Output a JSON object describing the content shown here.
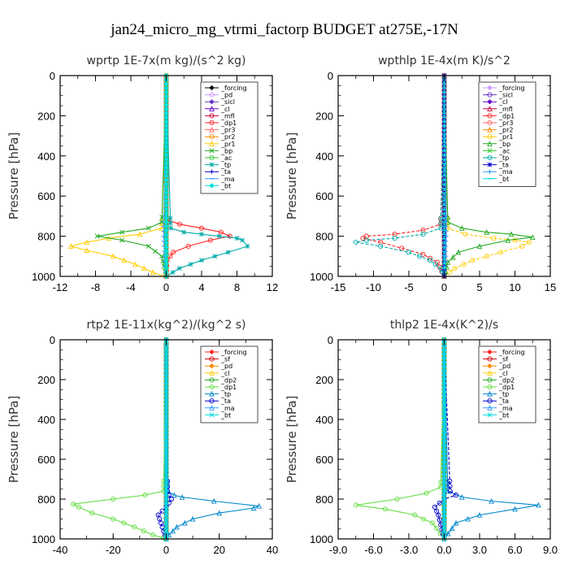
{
  "figure_title": "jan24_micro_mg_vtrmi_factorp  BUDGET at275E,-17N",
  "chart_data": [
    {
      "type": "line",
      "title": "wprtp  1E-7x(m kg)/(s^2 kg)",
      "ylabel": "Pressure [hPa]",
      "xlim": [
        -12,
        12
      ],
      "ylim": [
        1000,
        0
      ],
      "xticks": [
        -12,
        -8,
        -4,
        0,
        4,
        8,
        12
      ],
      "xtick_labels": [
        "-12",
        "-8",
        "-4",
        "0",
        "4",
        "8",
        "12"
      ],
      "yticks": [
        0,
        200,
        400,
        600,
        800,
        1000
      ],
      "ytick_labels": [
        "0",
        "200",
        "400",
        "600",
        "800",
        "1000"
      ],
      "legend": "top-right",
      "series": [
        {
          "name": "_forcing",
          "color": "#000000",
          "x": [
            0,
            0,
            0
          ],
          "y": [
            0,
            500,
            1000
          ]
        },
        {
          "name": "_pd",
          "color": "#cc99ff",
          "x": [
            0,
            0,
            0
          ],
          "y": [
            0,
            500,
            1000
          ]
        },
        {
          "name": "_sicl",
          "color": "#6633cc",
          "x": [
            0,
            0,
            0
          ],
          "y": [
            0,
            500,
            1000
          ]
        },
        {
          "name": "_cl",
          "color": "#6600cc",
          "x": [
            0,
            0,
            0
          ],
          "y": [
            0,
            500,
            1000
          ]
        },
        {
          "name": "_mfl",
          "color": "#cc0033",
          "x": [
            0,
            0,
            0
          ],
          "y": [
            0,
            500,
            1000
          ]
        },
        {
          "name": "_dp1",
          "color": "#ff2222",
          "x": [
            0,
            0.2,
            1.5,
            4,
            6.2,
            7.2,
            5,
            2.5,
            0.8,
            0.1,
            0
          ],
          "y": [
            0,
            720,
            740,
            760,
            780,
            800,
            820,
            850,
            880,
            920,
            1000
          ]
        },
        {
          "name": "_pr3",
          "color": "#ff6666",
          "x": [
            0,
            0,
            0
          ],
          "y": [
            0,
            500,
            1000
          ]
        },
        {
          "name": "_pr2",
          "color": "#ff8800",
          "x": [
            0,
            0,
            0
          ],
          "y": [
            0,
            500,
            1000
          ]
        },
        {
          "name": "_pr1",
          "color": "#ffcc00",
          "x": [
            0,
            -0.5,
            -3,
            -6.5,
            -9,
            -10.8,
            -9,
            -6,
            -3.5,
            -1.5,
            -0.2
          ],
          "y": [
            0,
            760,
            790,
            810,
            830,
            850,
            870,
            900,
            940,
            980,
            1000
          ]
        },
        {
          "name": "_bp",
          "color": "#22aa22",
          "x": [
            0,
            -0.5,
            -2,
            -5,
            -7.8,
            -5,
            -2,
            -0.5,
            0
          ],
          "y": [
            0,
            730,
            760,
            780,
            800,
            820,
            850,
            900,
            1000
          ]
        },
        {
          "name": "_ac",
          "color": "#33cc33",
          "x": [
            0,
            0,
            0
          ],
          "y": [
            0,
            500,
            1000
          ]
        },
        {
          "name": "_tp",
          "color": "#00aaaa",
          "x": [
            0,
            0.5,
            2,
            4,
            6,
            8,
            8.6,
            9.2,
            7,
            4,
            1.5,
            0
          ],
          "y": [
            0,
            760,
            780,
            790,
            800,
            810,
            820,
            850,
            880,
            920,
            960,
            1000
          ]
        },
        {
          "name": "_ta",
          "color": "#0000cc",
          "x": [
            0,
            0,
            0
          ],
          "y": [
            0,
            500,
            1000
          ]
        },
        {
          "name": "_ma",
          "color": "#3399ff",
          "x": [
            0,
            -0.3,
            -0.2,
            0
          ],
          "y": [
            0,
            800,
            900,
            1000
          ]
        },
        {
          "name": "_bt",
          "color": "#00dddd",
          "x": [
            0,
            0,
            0
          ],
          "y": [
            0,
            500,
            1000
          ]
        }
      ]
    },
    {
      "type": "line",
      "title": "wpthlp  1E-4x(m K)/s^2",
      "ylabel": "Pressure [hPa]",
      "xlim": [
        -15,
        15
      ],
      "ylim": [
        1000,
        0
      ],
      "xticks": [
        -15,
        -10,
        -5,
        0,
        5,
        10,
        15
      ],
      "xtick_labels": [
        "-15",
        "-10",
        "-5",
        "0",
        "5",
        "10",
        "15"
      ],
      "yticks": [
        0,
        200,
        400,
        600,
        800,
        1000
      ],
      "ytick_labels": [
        "0",
        "200",
        "400",
        "600",
        "800",
        "1000"
      ],
      "legend": "top-right",
      "series": [
        {
          "name": "_forcing",
          "color": "#cc99ff",
          "x": [
            0,
            0,
            0
          ],
          "y": [
            0,
            500,
            1000
          ]
        },
        {
          "name": "_sicl",
          "color": "#6633cc",
          "x": [
            0,
            0,
            0
          ],
          "y": [
            0,
            500,
            1000
          ]
        },
        {
          "name": "_cl",
          "color": "#6600cc",
          "x": [
            0,
            0,
            0
          ],
          "y": [
            0,
            500,
            1000
          ]
        },
        {
          "name": "_mfl",
          "color": "#cc0033",
          "x": [
            0,
            0,
            0
          ],
          "y": [
            0,
            500,
            1000
          ]
        },
        {
          "name": "_dp1",
          "color": "#ff2222",
          "x": [
            0,
            -0.5,
            -3,
            -7,
            -11,
            -11.5,
            -9,
            -6,
            -3,
            -1,
            0
          ],
          "y": [
            0,
            740,
            770,
            790,
            800,
            810,
            830,
            860,
            890,
            930,
            1000
          ]
        },
        {
          "name": "_pr3",
          "color": "#ff6666",
          "x": [
            0,
            0,
            0
          ],
          "y": [
            0,
            500,
            1000
          ]
        },
        {
          "name": "_pr2",
          "color": "#ff8800",
          "x": [
            0,
            0,
            0
          ],
          "y": [
            0,
            500,
            1000
          ]
        },
        {
          "name": "_pr1",
          "color": "#ffcc00",
          "x": [
            0,
            0.5,
            3,
            7,
            10,
            12,
            11,
            8,
            4,
            1.5,
            0
          ],
          "y": [
            0,
            760,
            790,
            810,
            820,
            830,
            850,
            880,
            920,
            960,
            1000
          ]
        },
        {
          "name": "_bp",
          "color": "#22aa22",
          "x": [
            0,
            0.5,
            2.5,
            6,
            9.5,
            12.5,
            9,
            5,
            2,
            0.5,
            0
          ],
          "y": [
            0,
            730,
            760,
            780,
            790,
            805,
            820,
            850,
            880,
            930,
            1000
          ]
        },
        {
          "name": "_ac",
          "color": "#33cc33",
          "x": [
            0,
            0,
            0
          ],
          "y": [
            0,
            500,
            1000
          ]
        },
        {
          "name": "_tp",
          "color": "#00aaaa",
          "x": [
            0,
            -0.5,
            -3,
            -7,
            -11,
            -12.5,
            -9,
            -5,
            -2,
            -0.5,
            0
          ],
          "y": [
            0,
            760,
            790,
            810,
            820,
            830,
            850,
            880,
            920,
            960,
            1000
          ]
        },
        {
          "name": "_ta",
          "color": "#0000cc",
          "x": [
            0,
            0,
            0
          ],
          "y": [
            0,
            500,
            1000
          ]
        },
        {
          "name": "_ma",
          "color": "#3399ff",
          "x": [
            0,
            0.3,
            0.2,
            0
          ],
          "y": [
            0,
            800,
            900,
            1000
          ]
        },
        {
          "name": "_bt",
          "color": "#00dddd",
          "x": [
            0,
            0,
            0
          ],
          "y": [
            0,
            500,
            1000
          ]
        }
      ]
    },
    {
      "type": "line",
      "title": "rtp2  1E-11x(kg^2)/(kg^2 s)",
      "ylabel": "Pressure [hPa]",
      "xlim": [
        -40,
        40
      ],
      "ylim": [
        1000,
        0
      ],
      "xticks": [
        -40,
        -20,
        0,
        20,
        40
      ],
      "xtick_labels": [
        "-40",
        "-20",
        "0",
        "20",
        "40"
      ],
      "yticks": [
        0,
        200,
        400,
        600,
        800,
        1000
      ],
      "ytick_labels": [
        "0",
        "200",
        "400",
        "600",
        "800",
        "1000"
      ],
      "legend": "top-right",
      "series": [
        {
          "name": "_forcing",
          "color": "#ff2222",
          "x": [
            0,
            0,
            0
          ],
          "y": [
            0,
            500,
            1000
          ]
        },
        {
          "name": "_sf",
          "color": "#cc0000",
          "x": [
            0,
            0,
            0
          ],
          "y": [
            0,
            500,
            1000
          ]
        },
        {
          "name": "_pd",
          "color": "#ff8800",
          "x": [
            0,
            0,
            0
          ],
          "y": [
            0,
            500,
            1000
          ]
        },
        {
          "name": "_cl",
          "color": "#ffcc00",
          "x": [
            0,
            0,
            0
          ],
          "y": [
            0,
            500,
            1000
          ]
        },
        {
          "name": "_dp2",
          "color": "#22aa22",
          "x": [
            0,
            0,
            0
          ],
          "y": [
            0,
            500,
            1000
          ]
        },
        {
          "name": "_dp1",
          "color": "#66dd44",
          "x": [
            0,
            -1,
            -8,
            -20,
            -35,
            -33,
            -28,
            -20,
            -12,
            -5,
            -1,
            0
          ],
          "y": [
            0,
            760,
            780,
            800,
            825,
            840,
            870,
            900,
            940,
            980,
            995,
            1000
          ]
        },
        {
          "name": "_tp",
          "color": "#0088cc",
          "x": [
            0,
            0.5,
            3,
            6,
            18,
            35,
            33,
            20,
            10,
            4,
            1,
            0
          ],
          "y": [
            0,
            760,
            780,
            790,
            810,
            835,
            845,
            870,
            900,
            940,
            980,
            1000
          ]
        },
        {
          "name": "_ta",
          "color": "#0000cc",
          "x": [
            0,
            0.5,
            1,
            2,
            0,
            -3,
            -2,
            -1,
            0
          ],
          "y": [
            0,
            760,
            780,
            800,
            840,
            880,
            920,
            960,
            1000
          ]
        },
        {
          "name": "_ma",
          "color": "#3399ff",
          "x": [
            0,
            0,
            0
          ],
          "y": [
            0,
            500,
            1000
          ]
        },
        {
          "name": "_bt",
          "color": "#00dddd",
          "x": [
            0,
            0,
            0
          ],
          "y": [
            0,
            500,
            1000
          ]
        }
      ]
    },
    {
      "type": "line",
      "title": "thlp2  1E-4x(K^2)/s",
      "ylabel": "Pressure [hPa]",
      "xlim": [
        -9,
        9
      ],
      "ylim": [
        1000,
        0
      ],
      "xticks": [
        -9,
        -6,
        -3,
        0,
        3,
        6,
        9
      ],
      "xtick_labels": [
        "-9.0",
        "-6.0",
        "-3.0",
        "0.0",
        "3.0",
        "6.0",
        "9.0"
      ],
      "yticks": [
        0,
        200,
        400,
        600,
        800,
        1000
      ],
      "ytick_labels": [
        "0",
        "200",
        "400",
        "600",
        "800",
        "1000"
      ],
      "legend": "top-right",
      "series": [
        {
          "name": "_forcing",
          "color": "#ff2222",
          "x": [
            0,
            0,
            0
          ],
          "y": [
            0,
            500,
            1000
          ]
        },
        {
          "name": "_sf",
          "color": "#cc0000",
          "x": [
            0,
            0,
            0
          ],
          "y": [
            0,
            500,
            1000
          ]
        },
        {
          "name": "_pd",
          "color": "#ff8800",
          "x": [
            0,
            0,
            0
          ],
          "y": [
            0,
            500,
            1000
          ]
        },
        {
          "name": "_cl",
          "color": "#ffcc00",
          "x": [
            0,
            0,
            0
          ],
          "y": [
            0,
            500,
            1000
          ]
        },
        {
          "name": "_dp2",
          "color": "#22aa22",
          "x": [
            0,
            0,
            0
          ],
          "y": [
            0,
            500,
            1000
          ]
        },
        {
          "name": "_dp1",
          "color": "#66dd44",
          "x": [
            0,
            -0.3,
            -1.5,
            -4,
            -7.5,
            -5,
            -2.5,
            -1,
            0
          ],
          "y": [
            0,
            740,
            770,
            800,
            830,
            850,
            880,
            920,
            1000
          ]
        },
        {
          "name": "_tp",
          "color": "#0088cc",
          "x": [
            0,
            0.3,
            1.5,
            4,
            8,
            6,
            3,
            1,
            0
          ],
          "y": [
            0,
            760,
            790,
            810,
            830,
            850,
            880,
            920,
            1000
          ]
        },
        {
          "name": "_ta",
          "color": "#0000cc",
          "x": [
            0,
            0.5,
            1,
            0,
            -0.8,
            -0.5,
            0
          ],
          "y": [
            0,
            760,
            780,
            800,
            840,
            880,
            1000
          ]
        },
        {
          "name": "_ma",
          "color": "#3399ff",
          "x": [
            0,
            0,
            0
          ],
          "y": [
            0,
            500,
            1000
          ]
        },
        {
          "name": "_bt",
          "color": "#00dddd",
          "x": [
            0,
            0,
            0
          ],
          "y": [
            0,
            500,
            1000
          ]
        }
      ]
    }
  ]
}
